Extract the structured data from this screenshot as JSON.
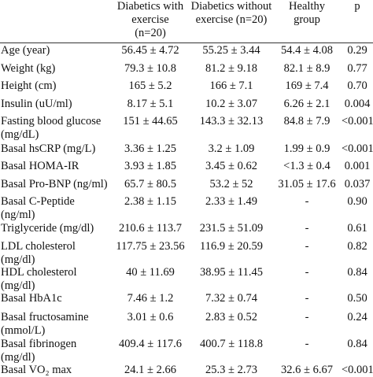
{
  "header": {
    "col1": [
      "Diabetics with",
      "exercise",
      "(n=20)"
    ],
    "col2": [
      "Diabetics without",
      "exercise (n=20)"
    ],
    "col3": [
      "Healthy",
      "group"
    ],
    "col4": [
      "p"
    ]
  },
  "rows": [
    {
      "label": [
        "Age (year)"
      ],
      "c1": "56.45 ± 4.72",
      "c2": "55.25 ± 3.44",
      "c3": "54.4 ± 4.08",
      "p": "0.29"
    },
    {
      "label": [
        "Weight (kg)"
      ],
      "c1": "79.3 ± 10.8",
      "c2": "81.2 ± 9.18",
      "c3": "82.1 ± 8.9",
      "p": "0.77"
    },
    {
      "label": [
        "Height (cm)"
      ],
      "c1": "165 ± 5.2",
      "c2": "166 ± 7.1",
      "c3": "169 ± 7.4",
      "p": "0.70"
    },
    {
      "label": [
        "Insulin (uU/ml)"
      ],
      "c1": "8.17 ± 5.1",
      "c2": "10.2 ± 3.07",
      "c3": "6.26 ± 2.1",
      "p": "0.004"
    },
    {
      "label": [
        "Fasting blood glucose",
        "(mg/dL)"
      ],
      "c1": "151 ± 44.65",
      "c2": "143.3 ± 32.13",
      "c3": "84.8 ± 7.9",
      "p": "<0.001"
    },
    {
      "label": [
        "Basal hsCRP (mg/L)"
      ],
      "c1": "3.36 ± 1.25",
      "c2": "3.2 ± 1.09",
      "c3": "1.99 ± 0.9",
      "p": "<0.001"
    },
    {
      "label": [
        "Basal HOMA-IR"
      ],
      "c1": "3.93 ± 1.85",
      "c2": "3.45 ± 0.62",
      "c3": "<1.3 ± 0.4",
      "p": "0.001"
    },
    {
      "label": [
        "Basal Pro-BNP (ng/ml)"
      ],
      "c1": "65.7 ± 80.5",
      "c2": "53.2 ± 52",
      "c3": "31.05 ± 17.6",
      "p": "0.037"
    },
    {
      "label": [
        "Basal C-Peptide",
        "(ng/ml)"
      ],
      "c1": "2.38 ± 1.15",
      "c2": "2.33 ± 1.49",
      "c3": "-",
      "p": "0.90"
    },
    {
      "label": [
        "Triglyceride (mg/dl)"
      ],
      "c1": "210.6 ± 113.7",
      "c2": "231.5 ± 51.09",
      "c3": "-",
      "p": "0.61"
    },
    {
      "label": [
        "LDL cholesterol",
        "(mg/dl)"
      ],
      "c1": "117.75 ± 23.56",
      "c2": "116.9 ± 20.59",
      "c3": "-",
      "p": "0.82"
    },
    {
      "label": [
        "HDL cholesterol",
        "(mg/dl)"
      ],
      "c1": "40 ± 11.69",
      "c2": "38.95 ± 11.45",
      "c3": "-",
      "p": "0.84"
    },
    {
      "label": [
        "Basal HbA1c"
      ],
      "c1": "7.46 ± 1.2",
      "c2": "7.32 ± 0.74",
      "c3": "-",
      "p": "0.50"
    },
    {
      "label": [
        "Basal fructosamine",
        "(mmol/L)"
      ],
      "c1": "3.01 ± 0.6",
      "c2": "2.83 ± 0.52",
      "c3": "-",
      "p": "0.24"
    },
    {
      "label": [
        "Basal fibrinogen",
        "(mg/dl)"
      ],
      "c1": "409.4 ± 117.6",
      "c2": "400.7 ± 118.8",
      "c3": "-",
      "p": "0.84"
    },
    {
      "label": [
        "Basal VO₂ max"
      ],
      "c1": "24.1 ± 2.66",
      "c2": "25.3 ± 2.73",
      "c3": "32.6 ± 6.67",
      "p": "<0.001"
    }
  ]
}
